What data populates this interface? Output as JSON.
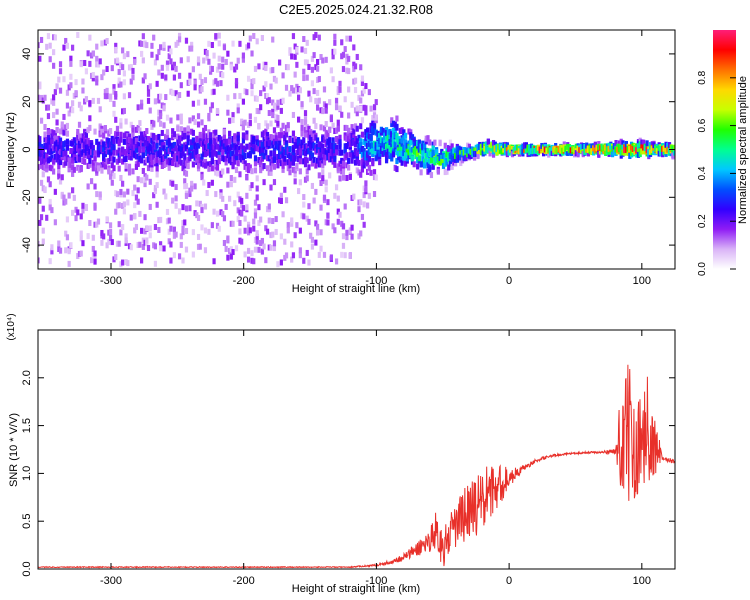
{
  "title": "C2E5.2025.024.21.32.R08",
  "chart_data": [
    {
      "type": "heatmap",
      "name": "spectrogram",
      "xlabel": "Height of straight line (km)",
      "ylabel": "Frequency (Hz)",
      "xlim": [
        -355,
        125
      ],
      "ylim": [
        -50,
        50
      ],
      "x_ticks": [
        -300,
        -200,
        -100,
        0,
        100
      ],
      "y_ticks": [
        -40,
        -20,
        0,
        20,
        40
      ],
      "colorbar": {
        "label": "Normalized spectral amplitude",
        "range": [
          0.0,
          1.0
        ],
        "ticks": [
          "0.0",
          "0.2",
          "0.4",
          "0.6",
          "0.8"
        ],
        "colors": [
          "#ffffff",
          "#d9b3f7",
          "#8f1cf5",
          "#3100ff",
          "#0050ff",
          "#00c8ff",
          "#00ff90",
          "#20ff00",
          "#c8ff00",
          "#ffd800",
          "#ff7000",
          "#ff0000",
          "#ff1e78"
        ]
      },
      "band_profile": {
        "x": [
          -355,
          -120,
          -105,
          -90,
          -80,
          -70,
          -60,
          -50,
          -40,
          -30,
          -20,
          -15,
          -10,
          0,
          20,
          40,
          60,
          80,
          90,
          100,
          110,
          125
        ],
        "center_hz": [
          0,
          0,
          2,
          3,
          1,
          -1,
          -3,
          -4,
          -2,
          -1,
          0,
          1,
          0,
          0,
          0,
          0,
          0,
          0,
          0,
          0,
          0,
          0
        ],
        "peak_amplitude": [
          0.28,
          0.3,
          0.45,
          0.5,
          0.55,
          0.58,
          0.6,
          0.6,
          0.55,
          0.65,
          0.75,
          0.9,
          0.8,
          0.85,
          0.88,
          0.9,
          0.88,
          0.92,
          0.95,
          0.95,
          0.85,
          0.75
        ],
        "spread_hz": [
          48,
          48,
          25,
          12,
          8,
          6,
          6,
          5,
          3,
          2,
          2,
          2,
          2,
          1.5,
          1.5,
          1.5,
          1.5,
          2,
          2.5,
          2.5,
          2,
          2
        ]
      }
    },
    {
      "type": "line",
      "name": "snr",
      "xlabel": "Height of straight line (km)",
      "ylabel": "SNR (10 * V/V)",
      "y_multiplier": "(x10⁴)",
      "xlim": [
        -355,
        125
      ],
      "ylim": [
        0,
        2.5
      ],
      "x_ticks": [
        -300,
        -200,
        -100,
        0,
        100
      ],
      "y_ticks": [
        "0.0",
        "0.5",
        "1.0",
        "1.5",
        "2.0"
      ],
      "color": "#e8302a",
      "x": [
        -355,
        -120,
        -100,
        -90,
        -80,
        -70,
        -60,
        -55,
        -50,
        -45,
        -40,
        -35,
        -30,
        -25,
        -20,
        -15,
        -10,
        -5,
        0,
        10,
        20,
        30,
        40,
        50,
        60,
        70,
        80,
        85,
        90,
        95,
        100,
        105,
        110,
        115,
        125
      ],
      "y": [
        0.02,
        0.02,
        0.04,
        0.07,
        0.12,
        0.2,
        0.3,
        0.42,
        0.2,
        0.35,
        0.45,
        0.55,
        0.6,
        0.65,
        0.72,
        0.78,
        0.85,
        0.9,
        0.95,
        1.05,
        1.13,
        1.18,
        1.2,
        1.21,
        1.22,
        1.22,
        1.23,
        1.25,
        1.4,
        1.35,
        1.3,
        1.2,
        1.3,
        1.17,
        1.12
      ],
      "noise_amp": [
        0.005,
        0.005,
        0.01,
        0.02,
        0.04,
        0.08,
        0.12,
        0.2,
        0.2,
        0.2,
        0.25,
        0.3,
        0.3,
        0.35,
        0.35,
        0.3,
        0.25,
        0.2,
        0.1,
        0.03,
        0.02,
        0.015,
        0.01,
        0.01,
        0.01,
        0.01,
        0.05,
        0.5,
        0.8,
        0.6,
        0.5,
        0.4,
        0.35,
        0.03,
        0.02
      ]
    }
  ]
}
